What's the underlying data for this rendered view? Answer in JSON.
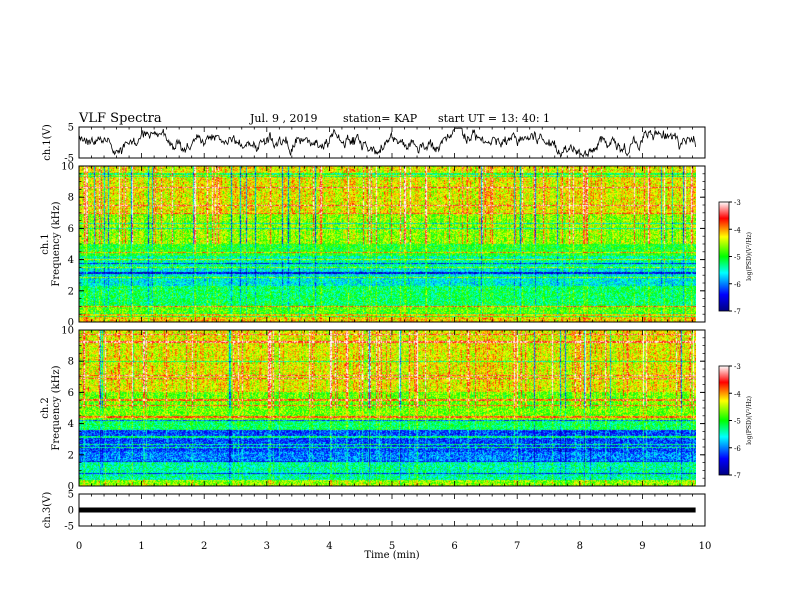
{
  "header": {
    "title": "VLF Spectra",
    "date": "Jul. 9 , 2019",
    "station": "station= KAP",
    "start": "start UT = 13: 40: 1"
  },
  "chart_data": [
    {
      "type": "line",
      "panel": "top",
      "ylabel": "ch.1(V)",
      "xlim": [
        0,
        10
      ],
      "ylim": [
        -5,
        5
      ],
      "yticks": [
        "5",
        "-5"
      ],
      "description_values_note": "",
      "color": "#000000"
    },
    {
      "type": "heatmap",
      "panel": "ch1",
      "ylabel": "ch.1\nFrequency (kHz)",
      "ylabel_line1": "ch.1",
      "ylabel_line2": "Frequency (kHz)",
      "xlim": [
        0,
        10
      ],
      "ylim": [
        0,
        10
      ],
      "yticks": [
        "0",
        "2",
        "4",
        "6",
        "8",
        "10"
      ],
      "colorbar": {
        "label": "log(PSD)(V²/Hz)",
        "ticks": [
          "-3",
          "-4",
          "-5",
          "-6",
          "-7"
        ],
        "range": [
          -7,
          -3
        ]
      },
      "bands": [
        {
          "from": 0.0,
          "to": 0.6,
          "level": -4.2
        },
        {
          "from": 0.6,
          "to": 1.0,
          "level": -4.8
        },
        {
          "from": 1.0,
          "to": 2.3,
          "level": -5.2
        },
        {
          "from": 2.3,
          "to": 3.5,
          "level": -5.6
        },
        {
          "from": 3.5,
          "to": 4.2,
          "level": -5.4
        },
        {
          "from": 4.2,
          "to": 5.0,
          "level": -5.0
        },
        {
          "from": 5.0,
          "to": 7.0,
          "level": -4.6
        },
        {
          "from": 7.0,
          "to": 10.0,
          "level": -4.3
        }
      ]
    },
    {
      "type": "heatmap",
      "panel": "ch2",
      "ylabel_line1": "ch.2",
      "ylabel_line2": "Frequency (kHz)",
      "xlim": [
        0,
        10
      ],
      "ylim": [
        0,
        10
      ],
      "yticks": [
        "0",
        "2",
        "4",
        "6",
        "8",
        "10"
      ],
      "colorbar": {
        "label": "log(PSD)(V²/Hz)",
        "ticks": [
          "-3",
          "-4",
          "-5",
          "-6",
          "-7"
        ],
        "range": [
          -7,
          -3
        ]
      },
      "bands": [
        {
          "from": 0.0,
          "to": 0.4,
          "level": -4.6
        },
        {
          "from": 0.4,
          "to": 1.6,
          "level": -5.4
        },
        {
          "from": 1.6,
          "to": 2.2,
          "level": -6.0
        },
        {
          "from": 2.2,
          "to": 3.6,
          "level": -6.2
        },
        {
          "from": 3.6,
          "to": 4.2,
          "level": -5.2
        },
        {
          "from": 4.2,
          "to": 6.0,
          "level": -4.7
        },
        {
          "from": 6.0,
          "to": 10.0,
          "level": -4.3
        }
      ]
    },
    {
      "type": "line",
      "panel": "bottom",
      "ylabel": "ch.3(V)",
      "xlim": [
        0,
        10
      ],
      "ylim": [
        -5,
        5
      ],
      "yticks": [
        "5",
        "0",
        "-5"
      ],
      "constant_value": 0,
      "color": "#000000"
    }
  ],
  "xaxis": {
    "label": "Time (min)",
    "ticks": [
      "0",
      "1",
      "2",
      "3",
      "4",
      "5",
      "6",
      "7",
      "8",
      "9",
      "10"
    ]
  },
  "colors": {
    "colormap": [
      "#000080",
      "#0000ff",
      "#00ffff",
      "#00ff00",
      "#ffff00",
      "#ff0000",
      "#ffffff"
    ]
  }
}
